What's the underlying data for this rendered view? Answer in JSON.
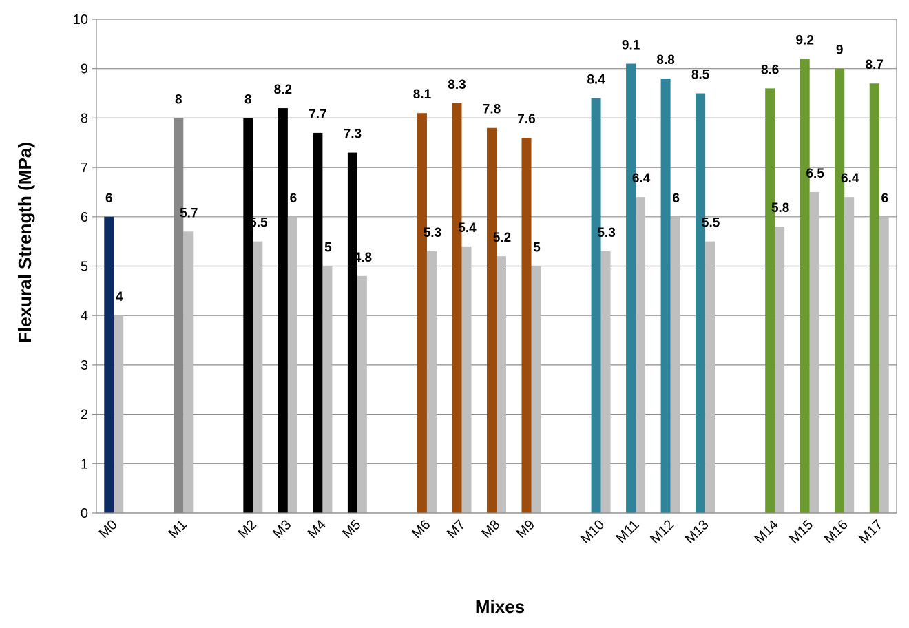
{
  "chart_data": {
    "type": "bar",
    "title": "",
    "xlabel": "Mixes",
    "ylabel": "Flexural Strength (MPa)",
    "ylim": [
      0,
      10
    ],
    "yticks": [
      "0",
      "1",
      "2",
      "3",
      "4",
      "5",
      "6",
      "7",
      "8",
      "9",
      "10"
    ],
    "grid": true,
    "legend": "none",
    "categories": [
      "M0",
      "M1",
      "M2",
      "M3",
      "M4",
      "M5",
      "M6",
      "M7",
      "M8",
      "M9",
      "M10",
      "M11",
      "M12",
      "M13",
      "M14",
      "M15",
      "M16",
      "M17"
    ],
    "series": [
      {
        "values": [
          6,
          8,
          8,
          8.2,
          7.7,
          7.3,
          8.1,
          8.3,
          7.8,
          7.6,
          8.4,
          9.1,
          8.8,
          8.5,
          8.6,
          9.2,
          9,
          8.7
        ],
        "colors": [
          "#0d2a63",
          "#878787",
          "#000000",
          "#000000",
          "#000000",
          "#000000",
          "#9c4d0e",
          "#9c4d0e",
          "#9c4d0e",
          "#9c4d0e",
          "#2f849a",
          "#2f849a",
          "#2f849a",
          "#2f849a",
          "#6a9a30",
          "#6a9a30",
          "#6a9a30",
          "#6a9a30"
        ]
      },
      {
        "values": [
          4,
          5.7,
          5.5,
          6,
          5,
          4.8,
          5.3,
          5.4,
          5.2,
          5,
          5.3,
          6.4,
          6,
          5.5,
          5.8,
          6.5,
          6.4,
          6
        ],
        "color": "#bfbfbf"
      }
    ]
  }
}
